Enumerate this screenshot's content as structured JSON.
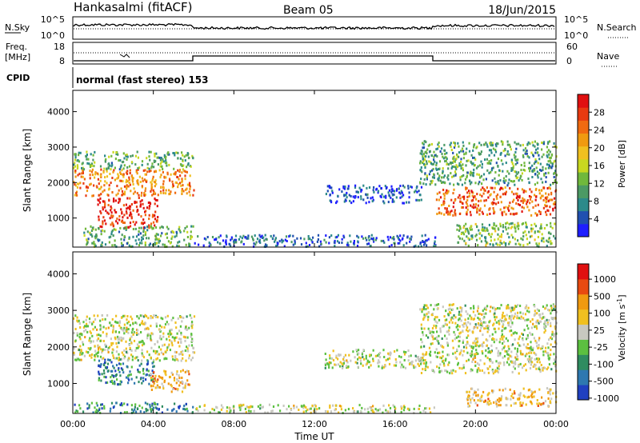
{
  "header": {
    "station": "Hankasalmi (fitACF)",
    "beam": "Beam 05",
    "date": "18/Jun/2015"
  },
  "sky_panel": {
    "left_label": "N.Sky",
    "right_label": "N.Search",
    "left_ticks": [
      "10^5",
      "10^0"
    ],
    "right_ticks": [
      "10^5",
      "10^0"
    ]
  },
  "freq_panel": {
    "left_label_line1": "Freq.",
    "left_label_line2": "[MHz]",
    "right_label": "Nave",
    "left_ticks": [
      "18",
      "8"
    ],
    "right_ticks": [
      "60",
      "0"
    ]
  },
  "cpid": {
    "label": "CPID",
    "text": "normal (fast stereo) 153"
  },
  "chart_data": [
    {
      "type": "heatmap",
      "quantity": "power",
      "ylabel": "Slant Range [km]",
      "ylim": [
        180,
        4600
      ],
      "yticks": [
        "1000",
        "2000",
        "3000",
        "4000"
      ],
      "xlim_hours": [
        0,
        24
      ],
      "colorbar_label": "Power [dB]",
      "colorbar_ticks": [
        "4",
        "8",
        "12",
        "16",
        "20",
        "24",
        "28"
      ],
      "colorbar_colors": [
        "#1e1eff",
        "#2050b0",
        "#2c8a8a",
        "#4c9a64",
        "#70b83c",
        "#c8d820",
        "#f0c020",
        "#f09a10",
        "#f06a10",
        "#e83a10",
        "#e01010"
      ],
      "scatter_bands": [
        {
          "t0": 0.0,
          "t1": 6.0,
          "r0": 1650,
          "r1": 2400,
          "level": 0.72
        },
        {
          "t0": 0.0,
          "t1": 6.0,
          "r0": 2400,
          "r1": 2900,
          "level": 0.35
        },
        {
          "t0": 1.2,
          "t1": 4.2,
          "r0": 750,
          "r1": 1600,
          "level": 0.92
        },
        {
          "t0": 0.5,
          "t1": 6.0,
          "r0": 200,
          "r1": 800,
          "level": 0.3
        },
        {
          "t0": 6.0,
          "t1": 18.0,
          "r0": 200,
          "r1": 550,
          "level": 0.15
        },
        {
          "t0": 12.5,
          "t1": 17.3,
          "r0": 1450,
          "r1": 1950,
          "level": 0.12
        },
        {
          "t0": 17.2,
          "t1": 24.0,
          "r0": 1950,
          "r1": 3200,
          "level": 0.32
        },
        {
          "t0": 18.0,
          "t1": 24.0,
          "r0": 1100,
          "r1": 1900,
          "level": 0.8
        },
        {
          "t0": 19.0,
          "t1": 24.0,
          "r0": 200,
          "r1": 900,
          "level": 0.4
        }
      ]
    },
    {
      "type": "heatmap",
      "quantity": "velocity",
      "ylabel": "Slant Range [km]",
      "ylim": [
        180,
        4600
      ],
      "yticks": [
        "1000",
        "2000",
        "3000",
        "4000"
      ],
      "xlim_hours": [
        0,
        24
      ],
      "xticks": [
        "00:00",
        "04:00",
        "08:00",
        "12:00",
        "16:00",
        "20:00",
        "00:00"
      ],
      "xlabel": "Time UT",
      "colorbar_label": "Velocity [m s^-1]",
      "colorbar_ticks": [
        "1000",
        "500",
        "100",
        "25",
        "-25",
        "-100",
        "-500",
        "-1000"
      ],
      "colorbar_colors": [
        "#2040c0",
        "#2e78b0",
        "#2f8c60",
        "#5cc040",
        "#c8c8c0",
        "#f0c020",
        "#f09a10",
        "#e84a10",
        "#e01010"
      ],
      "scatter_bands": [
        {
          "t0": 0.0,
          "t1": 6.0,
          "r0": 1650,
          "r1": 2900,
          "level": 0.5
        },
        {
          "t0": 1.2,
          "t1": 4.0,
          "r0": 1000,
          "r1": 1700,
          "level": 0.2
        },
        {
          "t0": 3.8,
          "t1": 5.8,
          "r0": 800,
          "r1": 1400,
          "level": 0.65
        },
        {
          "t0": 0.0,
          "t1": 6.0,
          "r0": 200,
          "r1": 500,
          "level": 0.25
        },
        {
          "t0": 6.0,
          "t1": 18.0,
          "r0": 200,
          "r1": 450,
          "level": 0.5
        },
        {
          "t0": 12.5,
          "t1": 17.3,
          "r0": 1450,
          "r1": 1950,
          "level": 0.5
        },
        {
          "t0": 17.2,
          "t1": 24.0,
          "r0": 1300,
          "r1": 3200,
          "level": 0.5
        },
        {
          "t0": 19.5,
          "t1": 24.0,
          "r0": 400,
          "r1": 900,
          "level": 0.62
        }
      ]
    }
  ]
}
